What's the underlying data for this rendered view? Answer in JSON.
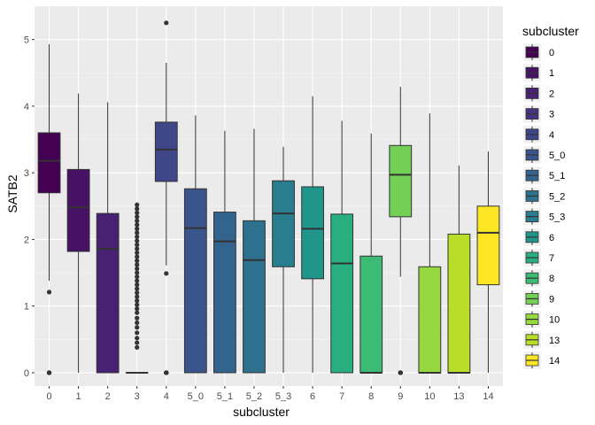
{
  "chart_data": {
    "type": "boxplot",
    "xlabel": "subcluster",
    "ylabel": "SATB2",
    "ylim": [
      -0.2,
      5.5
    ],
    "yticks": [
      0,
      1,
      2,
      3,
      4,
      5
    ],
    "grid": true,
    "legend": {
      "title": "subcluster",
      "placement": "right"
    },
    "categories": [
      "0",
      "1",
      "2",
      "3",
      "4",
      "5_0",
      "5_1",
      "5_2",
      "5_3",
      "6",
      "7",
      "8",
      "9",
      "10",
      "13",
      "14"
    ],
    "colors": [
      "#440154",
      "#471164",
      "#482173",
      "#453581",
      "#3F4788",
      "#3A548C",
      "#32648E",
      "#2D718E",
      "#287D8E",
      "#1F958B",
      "#29AF7F",
      "#3CBB75",
      "#73D055",
      "#95D840",
      "#B8DE29",
      "#FDE725"
    ],
    "boxes": [
      {
        "q1": 2.7,
        "median": 3.18,
        "q3": 3.6,
        "lower": 1.38,
        "upper": 4.93,
        "outliers": [
          1.21,
          0,
          0,
          0,
          0,
          0,
          0
        ]
      },
      {
        "q1": 1.82,
        "median": 2.48,
        "q3": 3.05,
        "lower": 0,
        "upper": 4.19,
        "outliers": []
      },
      {
        "q1": 0,
        "median": 1.86,
        "q3": 2.39,
        "lower": 0,
        "upper": 4.06,
        "outliers": []
      },
      {
        "q1": 0,
        "median": 0,
        "q3": 0,
        "lower": 0,
        "upper": 0,
        "outliers": [
          0.38,
          0.45,
          0.52,
          0.6,
          0.68,
          0.75,
          0.82,
          0.9,
          0.96,
          1.02,
          1.08,
          1.14,
          1.2,
          1.26,
          1.32,
          1.38,
          1.44,
          1.5,
          1.56,
          1.62,
          1.68,
          1.74,
          1.8,
          1.86,
          1.92,
          1.98,
          2.04,
          2.1,
          2.16,
          2.22,
          2.28,
          2.34,
          2.4,
          2.46,
          2.52
        ]
      },
      {
        "q1": 2.87,
        "median": 3.35,
        "q3": 3.76,
        "lower": 1.61,
        "upper": 4.65,
        "outliers": [
          5.25,
          1.49,
          0,
          0,
          0,
          0,
          0,
          0
        ]
      },
      {
        "q1": 0,
        "median": 2.17,
        "q3": 2.76,
        "lower": 0,
        "upper": 3.86,
        "outliers": []
      },
      {
        "q1": 0,
        "median": 1.97,
        "q3": 2.41,
        "lower": 0,
        "upper": 3.63,
        "outliers": []
      },
      {
        "q1": 0,
        "median": 1.69,
        "q3": 2.28,
        "lower": 0,
        "upper": 3.66,
        "outliers": []
      },
      {
        "q1": 1.59,
        "median": 2.39,
        "q3": 2.88,
        "lower": 0,
        "upper": 3.39,
        "outliers": []
      },
      {
        "q1": 1.41,
        "median": 2.16,
        "q3": 2.79,
        "lower": 0,
        "upper": 4.15,
        "outliers": []
      },
      {
        "q1": 0,
        "median": 1.64,
        "q3": 2.38,
        "lower": 0,
        "upper": 3.78,
        "outliers": []
      },
      {
        "q1": 0,
        "median": 0,
        "q3": 1.75,
        "lower": 0,
        "upper": 3.59,
        "outliers": []
      },
      {
        "q1": 2.34,
        "median": 2.97,
        "q3": 3.41,
        "lower": 1.44,
        "upper": 4.29,
        "outliers": [
          0,
          0,
          0,
          0,
          0
        ]
      },
      {
        "q1": 0,
        "median": 0,
        "q3": 1.59,
        "lower": 0,
        "upper": 3.89,
        "outliers": []
      },
      {
        "q1": 0,
        "median": 0,
        "q3": 2.08,
        "lower": 0,
        "upper": 3.11,
        "outliers": []
      },
      {
        "q1": 1.32,
        "median": 2.1,
        "q3": 2.5,
        "lower": 0,
        "upper": 3.32,
        "outliers": []
      }
    ]
  }
}
